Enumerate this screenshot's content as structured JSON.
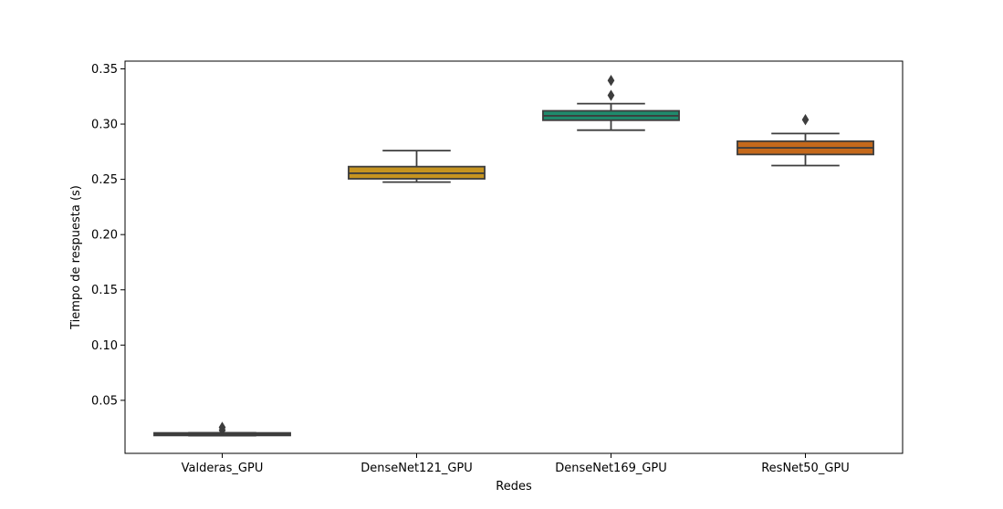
{
  "chart_data": {
    "type": "box",
    "title": "",
    "xlabel": "Redes",
    "ylabel": "Tiempo de respuesta (s)",
    "ylim": [
      0.002,
      0.357
    ],
    "yticks": [
      "0.05",
      "0.10",
      "0.15",
      "0.20",
      "0.25",
      "0.30",
      "0.35"
    ],
    "grid": false,
    "categories": [
      "Valderas_GPU",
      "DenseNet121_GPU",
      "DenseNet169_GPU",
      "ResNet50_GPU"
    ],
    "series": [
      {
        "category": "Valderas_GPU",
        "color": "#b0861a",
        "whisker_low": 0.018,
        "q1": 0.0182,
        "median": 0.019,
        "q3": 0.0205,
        "whisker_high": 0.0207,
        "outliers": [
          0.023,
          0.0255
        ]
      },
      {
        "category": "DenseNet121_GPU",
        "color": "#c69420",
        "whisker_low": 0.2475,
        "q1": 0.2505,
        "median": 0.2555,
        "q3": 0.2615,
        "whisker_high": 0.276,
        "outliers": []
      },
      {
        "category": "DenseNet169_GPU",
        "color": "#1f8a6c",
        "whisker_low": 0.2945,
        "q1": 0.3035,
        "median": 0.3075,
        "q3": 0.312,
        "whisker_high": 0.3185,
        "outliers": [
          0.326,
          0.3395
        ]
      },
      {
        "category": "ResNet50_GPU",
        "color": "#c5691b",
        "whisker_low": 0.2625,
        "q1": 0.2725,
        "median": 0.2785,
        "q3": 0.2845,
        "whisker_high": 0.2915,
        "outliers": [
          0.304
        ]
      }
    ]
  }
}
